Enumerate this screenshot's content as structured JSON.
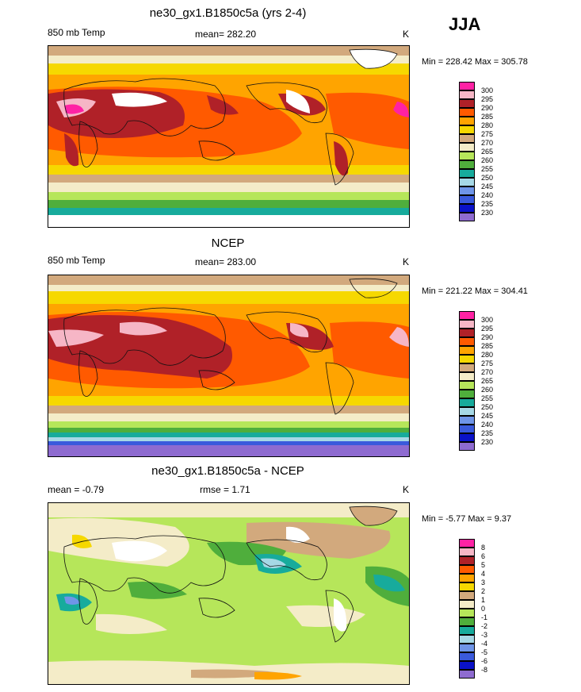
{
  "season": "JJA",
  "palette": {
    "b1": "#8e6bd0",
    "b2": "#0a12c8",
    "b3": "#3a5adc",
    "b4": "#6f95e8",
    "b5": "#a6d8e6",
    "b6": "#17ab9c",
    "b7": "#4fae3c",
    "b8": "#b6e65a",
    "b9": "#f4ecc8",
    "b10": "#d2a97d",
    "b11": "#f6d800",
    "b12": "#ffa400",
    "b13": "#ff5a00",
    "b14": "#b02128",
    "b15": "#f6b6c6",
    "b16": "#ff22a4",
    "missing": "#ffffff",
    "coast": "#111111"
  },
  "panels": [
    {
      "title": "ne30_gx1.B1850c5a (yrs 2-4)",
      "variable": "850 mb Temp",
      "mean": "mean= 282.20",
      "units": "K",
      "minmax": "Min = 228.42 Max = 305.78",
      "labelbar": [
        "300",
        "295",
        "290",
        "285",
        "280",
        "275",
        "270",
        "265",
        "260",
        "255",
        "250",
        "245",
        "240",
        "235",
        "230"
      ]
    },
    {
      "title": "NCEP",
      "variable": "850 mb Temp",
      "mean": "mean= 283.00",
      "units": "K",
      "minmax": "Min = 221.22 Max = 304.41",
      "labelbar": [
        "300",
        "295",
        "290",
        "285",
        "280",
        "275",
        "270",
        "265",
        "260",
        "255",
        "250",
        "245",
        "240",
        "235",
        "230"
      ]
    },
    {
      "title": "ne30_gx1.B1850c5a - NCEP",
      "variable": "mean =  -0.79",
      "mean": "rmse =   1.71",
      "units": "K",
      "minmax": "Min =  -5.77 Max =   9.37",
      "labelbar": [
        "8",
        "6",
        "5",
        "4",
        "3",
        "2",
        "1",
        "0",
        "-1",
        "-2",
        "-3",
        "-4",
        "-5",
        "-6",
        "-8"
      ]
    }
  ]
}
